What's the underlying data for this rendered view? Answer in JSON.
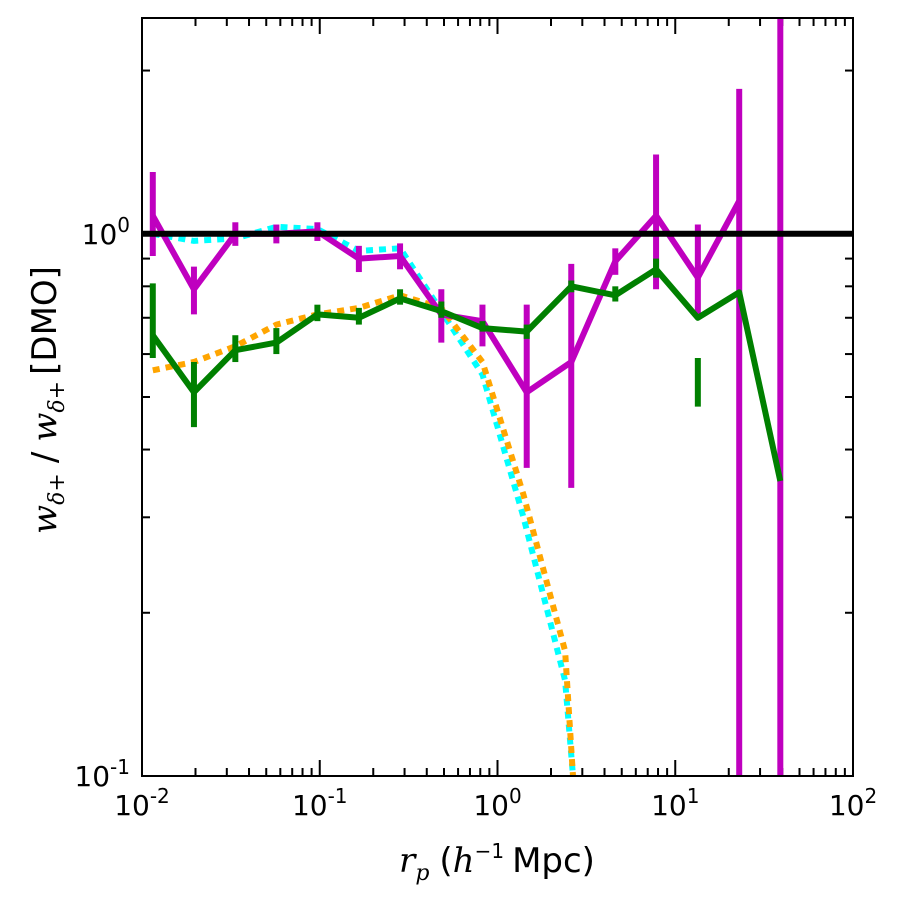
{
  "chart_data": {
    "type": "line",
    "xscale": "log",
    "yscale": "log",
    "xlim": [
      0.01,
      100
    ],
    "ylim": [
      0.1,
      2.5
    ],
    "xlabel": {
      "var": "r",
      "sub": "p",
      "open": "(",
      "h": "h",
      "exp": "−1",
      "unit": "Mpc)"
    },
    "ylabel": {
      "num_var": "w",
      "num_sub": "δ+",
      "sep": "/",
      "den_var": "w",
      "den_sub": "δ+",
      "tag": "[DMO]"
    },
    "xticks": [
      {
        "value": 0.01,
        "base": "10",
        "exp": "-2"
      },
      {
        "value": 0.1,
        "base": "10",
        "exp": "-1"
      },
      {
        "value": 1,
        "base": "10",
        "exp": "0"
      },
      {
        "value": 10,
        "base": "10",
        "exp": "1"
      },
      {
        "value": 100,
        "base": "10",
        "exp": "2"
      }
    ],
    "yticks": [
      {
        "value": 0.1,
        "base": "10",
        "exp": "-1"
      },
      {
        "value": 1,
        "base": "10",
        "exp": "0"
      }
    ],
    "reference_line": {
      "y": 1.0,
      "color": "#000000"
    },
    "series": [
      {
        "name": "dotted cyan",
        "color": "#00ffff",
        "style": "dotted",
        "x": [
          0.0115,
          0.0196,
          0.0335,
          0.057,
          0.097,
          0.166,
          0.283,
          0.483,
          0.823,
          1.4,
          2.4,
          2.66
        ],
        "y": [
          1.0,
          0.97,
          0.98,
          1.03,
          1.02,
          0.93,
          0.94,
          0.72,
          0.55,
          0.3,
          0.15,
          0.1
        ]
      },
      {
        "name": "dotted orange",
        "color": "#ffa500",
        "style": "dotted",
        "x": [
          0.0115,
          0.0196,
          0.0335,
          0.057,
          0.097,
          0.166,
          0.283,
          0.483,
          0.823,
          1.4,
          2.4,
          2.66
        ],
        "y": [
          0.56,
          0.58,
          0.62,
          0.68,
          0.71,
          0.73,
          0.77,
          0.73,
          0.58,
          0.33,
          0.17,
          0.1
        ]
      },
      {
        "name": "magenta",
        "color": "#bf00bf",
        "style": "solid",
        "x": [
          0.0115,
          0.0196,
          0.0335,
          0.057,
          0.097,
          0.166,
          0.283,
          0.483,
          0.823,
          1.46,
          2.6,
          4.6,
          7.8,
          13.4,
          22.9
        ],
        "y": [
          1.08,
          0.79,
          1.0,
          1.0,
          1.01,
          0.9,
          0.91,
          0.71,
          0.69,
          0.51,
          0.58,
          0.89,
          1.08,
          0.83,
          1.15
        ],
        "err_lo": [
          0.91,
          0.71,
          0.95,
          0.96,
          0.97,
          0.85,
          0.86,
          0.63,
          0.62,
          0.37,
          0.34,
          0.84,
          0.79,
          0.7,
          0.1
        ],
        "err_hi": [
          1.3,
          0.87,
          1.05,
          1.04,
          1.05,
          0.95,
          0.96,
          0.79,
          0.74,
          0.74,
          0.88,
          0.94,
          1.4,
          1.04,
          1.85
        ],
        "extra_bars": [
          {
            "x": 39.0,
            "lo": 0.1,
            "hi": 2.5
          }
        ]
      },
      {
        "name": "green",
        "color": "#008000",
        "style": "solid",
        "x": [
          0.0115,
          0.0196,
          0.0335,
          0.057,
          0.097,
          0.166,
          0.283,
          0.483,
          0.823,
          1.46,
          2.6,
          4.6,
          7.8,
          13.4,
          22.9,
          39.0
        ],
        "y": [
          0.65,
          0.51,
          0.61,
          0.63,
          0.71,
          0.7,
          0.76,
          0.72,
          0.67,
          0.66,
          0.8,
          0.77,
          0.86,
          0.7,
          0.78,
          0.35
        ],
        "err_lo": [
          0.59,
          0.44,
          0.58,
          0.6,
          0.69,
          0.68,
          0.74,
          0.7,
          0.66,
          0.64,
          0.78,
          0.75,
          0.83,
          0.48,
          null,
          null
        ],
        "err_hi": [
          0.81,
          0.58,
          0.65,
          0.67,
          0.74,
          0.73,
          0.79,
          0.75,
          0.69,
          0.68,
          0.82,
          0.8,
          0.9,
          0.59,
          null,
          null
        ]
      }
    ]
  }
}
